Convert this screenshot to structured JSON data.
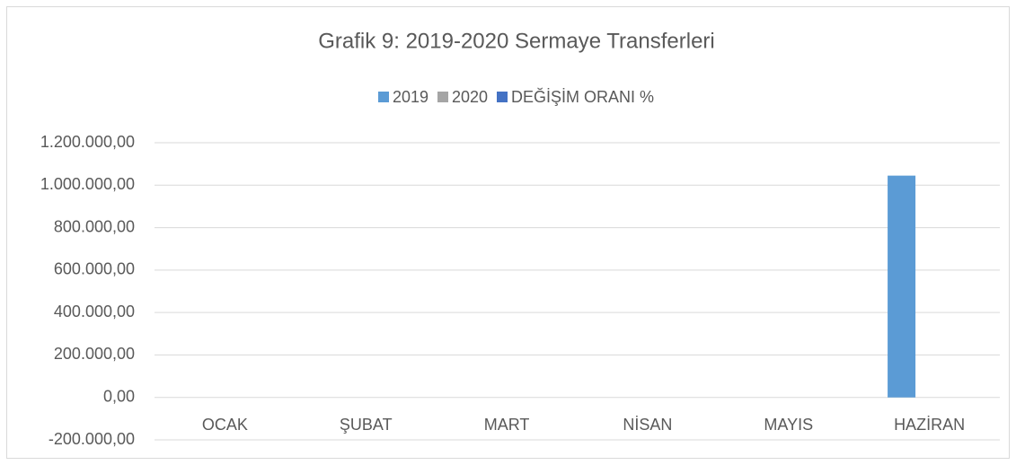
{
  "chart_data": {
    "type": "bar",
    "title": "Grafik 9: 2019-2020 Sermaye Transferleri",
    "categories": [
      "OCAK",
      "ŞUBAT",
      "MART",
      "NİSAN",
      "MAYIS",
      "HAZİRAN"
    ],
    "series": [
      {
        "name": "2019",
        "color": "#5b9bd5",
        "values": [
          0,
          0,
          0,
          0,
          0,
          1045000
        ]
      },
      {
        "name": "2020",
        "color": "#a5a5a5",
        "values": [
          0,
          0,
          0,
          0,
          0,
          0
        ]
      },
      {
        "name": "DEĞİŞİM ORANI %",
        "color": "#4472c4",
        "values": [
          0,
          0,
          0,
          0,
          0,
          0
        ]
      }
    ],
    "ylim": [
      -200000,
      1200000
    ],
    "yticks": [
      {
        "value": -200000,
        "label": "-200.000,00"
      },
      {
        "value": 0,
        "label": "0,00"
      },
      {
        "value": 200000,
        "label": "200.000,00"
      },
      {
        "value": 400000,
        "label": "400.000,00"
      },
      {
        "value": 600000,
        "label": "600.000,00"
      },
      {
        "value": 800000,
        "label": "800.000,00"
      },
      {
        "value": 1000000,
        "label": "1.000.000,00"
      },
      {
        "value": 1200000,
        "label": "1.200.000,00"
      }
    ],
    "grid": true,
    "legend": "top"
  }
}
